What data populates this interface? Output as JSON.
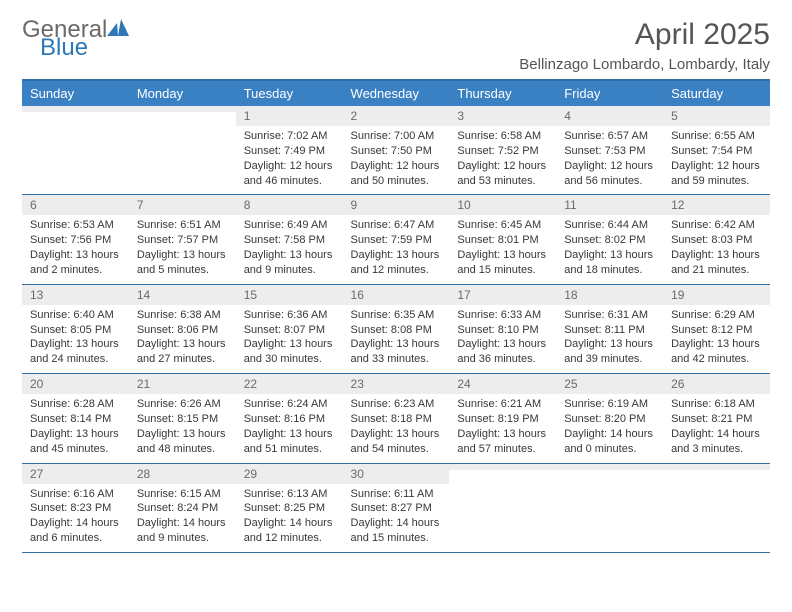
{
  "brand": {
    "word1": "General",
    "word2": "Blue",
    "word1_color": "#6a6a6a",
    "word2_color": "#2f78b7",
    "triangle_color": "#2f78b7"
  },
  "title": "April 2025",
  "location": "Bellinzago Lombardo, Lombardy, Italy",
  "colors": {
    "header_bg": "#3a81c4",
    "header_border": "#2f6fa8",
    "daynum_bg": "#ededed",
    "text": "#333333"
  },
  "weekday_labels": [
    "Sunday",
    "Monday",
    "Tuesday",
    "Wednesday",
    "Thursday",
    "Friday",
    "Saturday"
  ],
  "weeks": [
    [
      {
        "day": "",
        "sunrise": "",
        "sunset": "",
        "daylight": ""
      },
      {
        "day": "",
        "sunrise": "",
        "sunset": "",
        "daylight": ""
      },
      {
        "day": "1",
        "sunrise": "Sunrise: 7:02 AM",
        "sunset": "Sunset: 7:49 PM",
        "daylight": "Daylight: 12 hours and 46 minutes."
      },
      {
        "day": "2",
        "sunrise": "Sunrise: 7:00 AM",
        "sunset": "Sunset: 7:50 PM",
        "daylight": "Daylight: 12 hours and 50 minutes."
      },
      {
        "day": "3",
        "sunrise": "Sunrise: 6:58 AM",
        "sunset": "Sunset: 7:52 PM",
        "daylight": "Daylight: 12 hours and 53 minutes."
      },
      {
        "day": "4",
        "sunrise": "Sunrise: 6:57 AM",
        "sunset": "Sunset: 7:53 PM",
        "daylight": "Daylight: 12 hours and 56 minutes."
      },
      {
        "day": "5",
        "sunrise": "Sunrise: 6:55 AM",
        "sunset": "Sunset: 7:54 PM",
        "daylight": "Daylight: 12 hours and 59 minutes."
      }
    ],
    [
      {
        "day": "6",
        "sunrise": "Sunrise: 6:53 AM",
        "sunset": "Sunset: 7:56 PM",
        "daylight": "Daylight: 13 hours and 2 minutes."
      },
      {
        "day": "7",
        "sunrise": "Sunrise: 6:51 AM",
        "sunset": "Sunset: 7:57 PM",
        "daylight": "Daylight: 13 hours and 5 minutes."
      },
      {
        "day": "8",
        "sunrise": "Sunrise: 6:49 AM",
        "sunset": "Sunset: 7:58 PM",
        "daylight": "Daylight: 13 hours and 9 minutes."
      },
      {
        "day": "9",
        "sunrise": "Sunrise: 6:47 AM",
        "sunset": "Sunset: 7:59 PM",
        "daylight": "Daylight: 13 hours and 12 minutes."
      },
      {
        "day": "10",
        "sunrise": "Sunrise: 6:45 AM",
        "sunset": "Sunset: 8:01 PM",
        "daylight": "Daylight: 13 hours and 15 minutes."
      },
      {
        "day": "11",
        "sunrise": "Sunrise: 6:44 AM",
        "sunset": "Sunset: 8:02 PM",
        "daylight": "Daylight: 13 hours and 18 minutes."
      },
      {
        "day": "12",
        "sunrise": "Sunrise: 6:42 AM",
        "sunset": "Sunset: 8:03 PM",
        "daylight": "Daylight: 13 hours and 21 minutes."
      }
    ],
    [
      {
        "day": "13",
        "sunrise": "Sunrise: 6:40 AM",
        "sunset": "Sunset: 8:05 PM",
        "daylight": "Daylight: 13 hours and 24 minutes."
      },
      {
        "day": "14",
        "sunrise": "Sunrise: 6:38 AM",
        "sunset": "Sunset: 8:06 PM",
        "daylight": "Daylight: 13 hours and 27 minutes."
      },
      {
        "day": "15",
        "sunrise": "Sunrise: 6:36 AM",
        "sunset": "Sunset: 8:07 PM",
        "daylight": "Daylight: 13 hours and 30 minutes."
      },
      {
        "day": "16",
        "sunrise": "Sunrise: 6:35 AM",
        "sunset": "Sunset: 8:08 PM",
        "daylight": "Daylight: 13 hours and 33 minutes."
      },
      {
        "day": "17",
        "sunrise": "Sunrise: 6:33 AM",
        "sunset": "Sunset: 8:10 PM",
        "daylight": "Daylight: 13 hours and 36 minutes."
      },
      {
        "day": "18",
        "sunrise": "Sunrise: 6:31 AM",
        "sunset": "Sunset: 8:11 PM",
        "daylight": "Daylight: 13 hours and 39 minutes."
      },
      {
        "day": "19",
        "sunrise": "Sunrise: 6:29 AM",
        "sunset": "Sunset: 8:12 PM",
        "daylight": "Daylight: 13 hours and 42 minutes."
      }
    ],
    [
      {
        "day": "20",
        "sunrise": "Sunrise: 6:28 AM",
        "sunset": "Sunset: 8:14 PM",
        "daylight": "Daylight: 13 hours and 45 minutes."
      },
      {
        "day": "21",
        "sunrise": "Sunrise: 6:26 AM",
        "sunset": "Sunset: 8:15 PM",
        "daylight": "Daylight: 13 hours and 48 minutes."
      },
      {
        "day": "22",
        "sunrise": "Sunrise: 6:24 AM",
        "sunset": "Sunset: 8:16 PM",
        "daylight": "Daylight: 13 hours and 51 minutes."
      },
      {
        "day": "23",
        "sunrise": "Sunrise: 6:23 AM",
        "sunset": "Sunset: 8:18 PM",
        "daylight": "Daylight: 13 hours and 54 minutes."
      },
      {
        "day": "24",
        "sunrise": "Sunrise: 6:21 AM",
        "sunset": "Sunset: 8:19 PM",
        "daylight": "Daylight: 13 hours and 57 minutes."
      },
      {
        "day": "25",
        "sunrise": "Sunrise: 6:19 AM",
        "sunset": "Sunset: 8:20 PM",
        "daylight": "Daylight: 14 hours and 0 minutes."
      },
      {
        "day": "26",
        "sunrise": "Sunrise: 6:18 AM",
        "sunset": "Sunset: 8:21 PM",
        "daylight": "Daylight: 14 hours and 3 minutes."
      }
    ],
    [
      {
        "day": "27",
        "sunrise": "Sunrise: 6:16 AM",
        "sunset": "Sunset: 8:23 PM",
        "daylight": "Daylight: 14 hours and 6 minutes."
      },
      {
        "day": "28",
        "sunrise": "Sunrise: 6:15 AM",
        "sunset": "Sunset: 8:24 PM",
        "daylight": "Daylight: 14 hours and 9 minutes."
      },
      {
        "day": "29",
        "sunrise": "Sunrise: 6:13 AM",
        "sunset": "Sunset: 8:25 PM",
        "daylight": "Daylight: 14 hours and 12 minutes."
      },
      {
        "day": "30",
        "sunrise": "Sunrise: 6:11 AM",
        "sunset": "Sunset: 8:27 PM",
        "daylight": "Daylight: 14 hours and 15 minutes."
      },
      {
        "day": "",
        "sunrise": "",
        "sunset": "",
        "daylight": ""
      },
      {
        "day": "",
        "sunrise": "",
        "sunset": "",
        "daylight": ""
      },
      {
        "day": "",
        "sunrise": "",
        "sunset": "",
        "daylight": ""
      }
    ]
  ]
}
